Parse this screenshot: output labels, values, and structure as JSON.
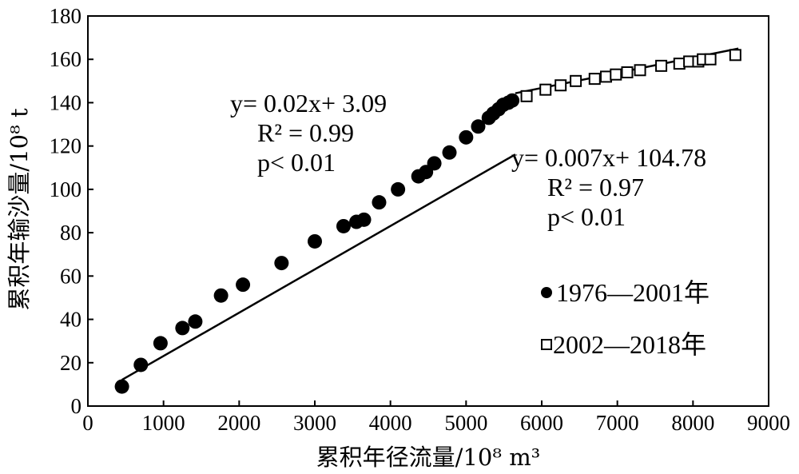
{
  "chart_data": {
    "type": "scatter",
    "xlabel": "累积年径流量/10⁸ m³",
    "ylabel": "累积年输沙量/10⁸ t",
    "xlim": [
      0,
      9000
    ],
    "ylim": [
      0,
      180
    ],
    "xticks": [
      "0",
      "1000",
      "2000",
      "3000",
      "4000",
      "5000",
      "6000",
      "7000",
      "8000",
      "9000"
    ],
    "yticks": [
      "0",
      "20",
      "40",
      "60",
      "80",
      "100",
      "120",
      "140",
      "160",
      "180"
    ],
    "grid": false,
    "legend_position": "right",
    "series": [
      {
        "name": "1976—2001年",
        "marker": "filled-circle",
        "color": "#000000",
        "x": [
          450,
          700,
          960,
          1250,
          1420,
          1760,
          2050,
          2560,
          3000,
          3380,
          3550,
          3650,
          3850,
          4100,
          4370,
          4470,
          4580,
          4780,
          5000,
          5160,
          5300,
          5360,
          5430,
          5490,
          5560,
          5610
        ],
        "y": [
          9,
          19,
          29,
          36,
          39,
          51,
          56,
          66,
          76,
          83,
          85,
          86,
          94,
          100,
          106,
          108,
          112,
          117,
          124,
          129,
          133,
          135,
          137,
          139,
          140,
          141
        ]
      },
      {
        "name": "2002—2018年",
        "marker": "open-square",
        "color": "#000000",
        "x": [
          5800,
          6050,
          6250,
          6450,
          6700,
          6850,
          6980,
          7130,
          7300,
          7580,
          7820,
          7950,
          8070,
          8130,
          8230,
          8560
        ],
        "y": [
          143,
          146,
          148,
          150,
          151,
          152,
          153,
          154,
          155,
          157,
          158,
          159,
          159,
          160,
          160,
          162
        ]
      }
    ],
    "fits": [
      {
        "equation": "y= 0.02x+ 3.09",
        "r2": "R² = 0.99",
        "p": "p< 0.01",
        "x_range": [
          450,
          5650
        ],
        "slope": 0.02,
        "intercept": 3.09
      },
      {
        "equation": "y= 0.007x+ 104.78",
        "r2": "R² = 0.97",
        "p": "p< 0.01",
        "x_range": [
          5650,
          8600
        ],
        "slope": 0.007,
        "intercept": 104.78
      }
    ]
  }
}
